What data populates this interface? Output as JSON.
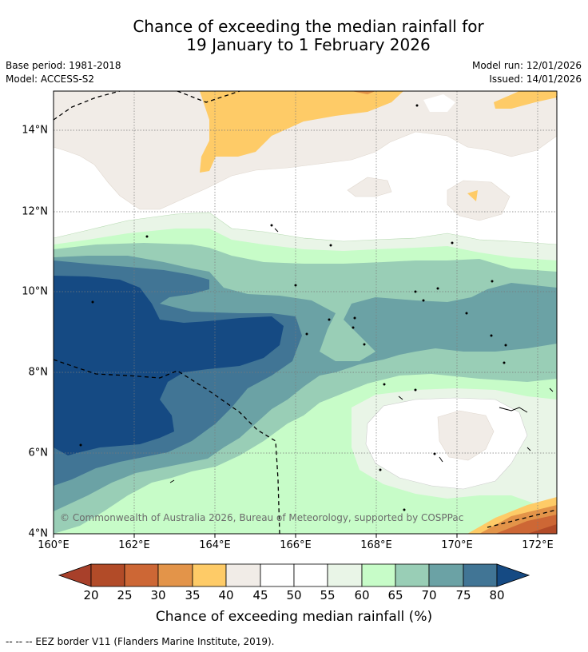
{
  "title_line1": "Chance of exceeding the median rainfall for",
  "title_line2": "19 January to 1 February 2026",
  "base_period": "Base period: 1981-2018",
  "model": "Model: ACCESS-S2",
  "model_run": "Model run: 12/01/2026",
  "issued": "Issued: 14/01/2026",
  "lat_labels": [
    "14°N",
    "12°N",
    "10°N",
    "8°N",
    "6°N",
    "4°N"
  ],
  "lon_labels": [
    "160°E",
    "162°E",
    "164°E",
    "166°E",
    "168°E",
    "170°E",
    "172°E"
  ],
  "copyright": "© Commonwealth of Australia 2026, Bureau of Meteorology, supported by COSPPac",
  "colorbar": {
    "ticks": [
      "20",
      "25",
      "30",
      "35",
      "40",
      "45",
      "50",
      "55",
      "60",
      "65",
      "70",
      "75",
      "80"
    ],
    "colors": [
      "#a8402a",
      "#b24b28",
      "#cd6735",
      "#e39449",
      "#fecb67",
      "#f1ece7",
      "#ffffff",
      "#ffffff",
      "#e9f5e7",
      "#c7fcc8",
      "#99ceb6",
      "#6ba2a5",
      "#417595",
      "#154a83"
    ],
    "label": "Chance of exceeding median rainfall (%)"
  },
  "footnote": "--  --  -- EEZ border V11 (Flanders Marine Institute, 2019).",
  "map_extent": {
    "lon_min": 160,
    "lon_max": 172.5,
    "lat_min": 4,
    "lat_max": 15
  }
}
